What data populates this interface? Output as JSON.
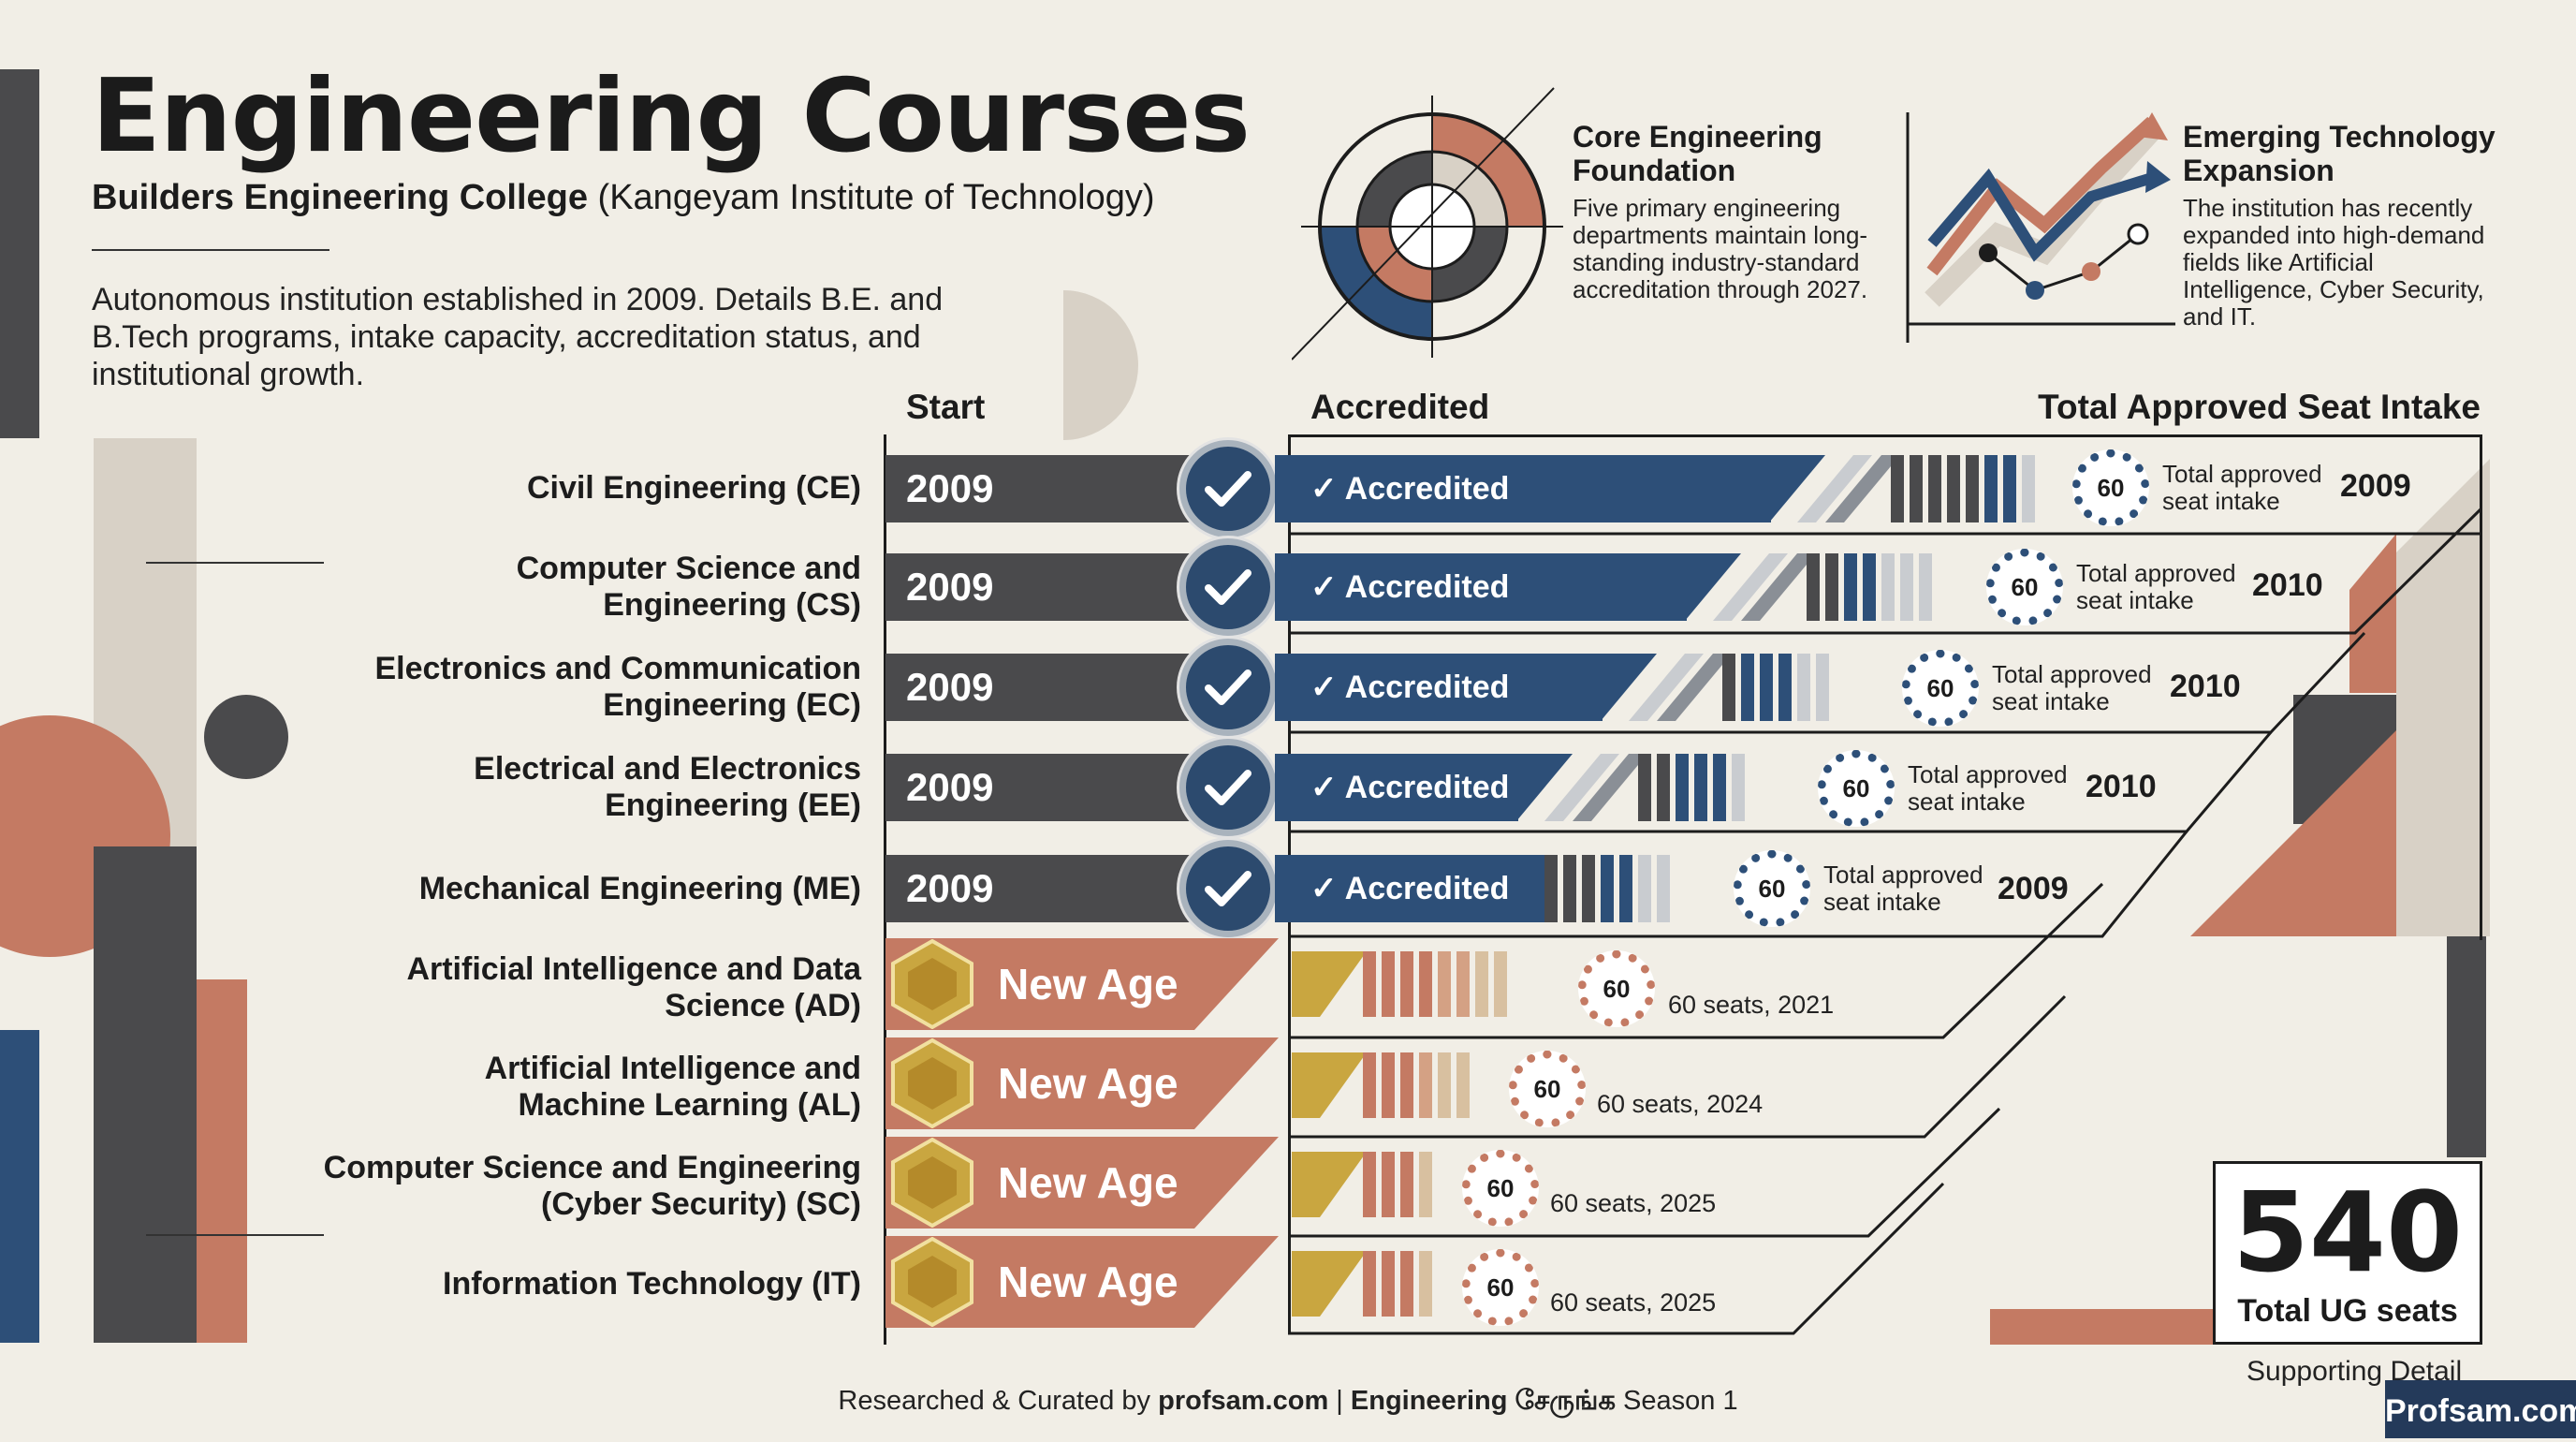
{
  "header": {
    "title": "Engineering Courses",
    "college_bold": "Builders Engineering College",
    "college_rest": "(Kangeyam Institute of Technology)",
    "description": "Autonomous institution established in 2009. Details B.E. and B.Tech programs, intake capacity, accreditation status, and institutional growth."
  },
  "cards": [
    {
      "title": "Core Engineering Foundation",
      "body": "Five primary engineering departments maintain long-standing industry-standard accreditation through 2027."
    },
    {
      "title": "Emerging Technology Expansion",
      "body": "The institution has recently expanded into high-demand fields like Artificial Intelligence, Cyber Security, and IT."
    }
  ],
  "columns": {
    "start": "Start",
    "accredited": "Accredited",
    "intake": "Total Approved Seat Intake"
  },
  "accredited_courses": [
    {
      "name": "Civil Engineering (CE)",
      "start": "2009",
      "status": "✓ Accredited",
      "seats": "60",
      "intake_label": "Total approved seat intake",
      "year": "2009"
    },
    {
      "name": "Computer Science and Engineering (CS)",
      "start": "2009",
      "status": "✓ Accredited",
      "seats": "60",
      "intake_label": "Total approved seat intake",
      "year": "2010"
    },
    {
      "name": "Electronics and Communication Engineering (EC)",
      "start": "2009",
      "status": "✓ Accredited",
      "seats": "60",
      "intake_label": "Total approved seat intake",
      "year": "2010"
    },
    {
      "name": "Electrical and Electronics Engineering (EE)",
      "start": "2009",
      "status": "✓ Accredited",
      "seats": "60",
      "intake_label": "Total approved seat intake",
      "year": "2010"
    },
    {
      "name": "Mechanical Engineering (ME)",
      "start": "2009",
      "status": "✓ Accredited",
      "seats": "60",
      "intake_label": "Total approved seat intake",
      "year": "2009"
    }
  ],
  "new_age_courses": [
    {
      "name": "Artificial Intelligence and Data Science (AD)",
      "tag": "New Age",
      "seats": "60",
      "detail": "60 seats, 2021"
    },
    {
      "name": "Artificial Intelligence and Machine Learning (AL)",
      "tag": "New Age",
      "seats": "60",
      "detail": "60 seats, 2024"
    },
    {
      "name": "Computer Science and Engineering (Cyber Security) (SC)",
      "tag": "New Age",
      "seats": "60",
      "detail": "60 seats, 2025"
    },
    {
      "name": "Information Technology (IT)",
      "tag": "New Age",
      "seats": "60",
      "detail": "60 seats, 2025"
    }
  ],
  "total": {
    "value": "540",
    "label": "Total UG seats",
    "supporting": "Supporting Detail"
  },
  "footer": {
    "prefix": "Researched & Curated by ",
    "site": "profsam.com",
    "sep": " | ",
    "show": "Engineering சேருங்க",
    "season": " Season 1"
  },
  "badge": "Profsam.com",
  "colors": {
    "navy": "#2d4f78",
    "charcoal": "#4a4a4c",
    "terracotta": "#c47a63",
    "gold": "#c9a640",
    "cream": "#f1eee6"
  }
}
